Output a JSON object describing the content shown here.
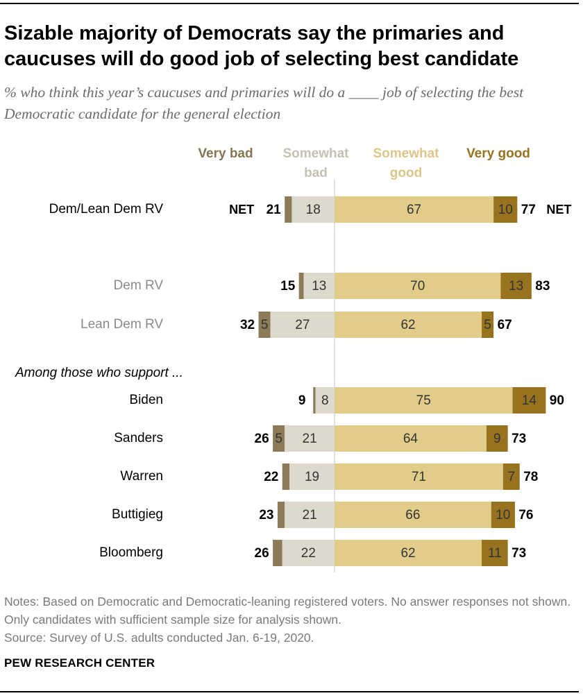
{
  "title": "Sizable majority of Democrats say the primaries and caucuses will do good job of selecting best candidate",
  "subtitle": "% who think this year’s caucuses and primaries will do a ____ job of selecting the best Democratic candidate for the general election",
  "notes": "Notes: Based on Democratic and Democratic-leaning registered voters. No answer responses not shown. Only candidates with sufficient sample size for analysis shown.",
  "source": "Source: Survey of U.S. adults conducted Jan. 6-19, 2020.",
  "organization": "PEW RESEARCH CENTER",
  "chart_data": {
    "type": "bar",
    "orientation": "horizontal-diverging",
    "net_label": "NET",
    "section_label": "Among those who support ...",
    "legend": [
      "Very bad",
      "Somewhat bad",
      "Somewhat good",
      "Very good"
    ],
    "colors": {
      "very_bad": "#8c7b58",
      "somewhat_bad": "#ddd9cd",
      "somewhat_good": "#e2cc8a",
      "very_good": "#98731f",
      "label_very_bad": "#857553",
      "label_somewhat_bad": "#c4c0b3",
      "label_somewhat_good": "#ddc68a",
      "label_very_good": "#98731f",
      "grey_category": "#8a8a8a",
      "axis": "#cccccc"
    },
    "categories": [
      "Dem/Lean Dem RV",
      "Dem RV",
      "Lean Dem RV",
      "Biden",
      "Sanders",
      "Warren",
      "Buttigieg",
      "Bloomberg"
    ],
    "category_style": [
      "normal",
      "grey",
      "grey",
      "normal",
      "normal",
      "normal",
      "normal",
      "normal"
    ],
    "show_net_word": [
      true,
      false,
      false,
      false,
      false,
      false,
      false,
      false
    ],
    "series": [
      {
        "name": "Very bad",
        "values": [
          3,
          2,
          5,
          1,
          5,
          3,
          3,
          4
        ],
        "labels": [
          "",
          "",
          "5",
          "",
          "5",
          "",
          "",
          ""
        ]
      },
      {
        "name": "Somewhat bad",
        "values": [
          18,
          13,
          27,
          8,
          21,
          19,
          21,
          22
        ],
        "labels": [
          "18",
          "13",
          "27",
          "8",
          "21",
          "19",
          "21",
          "22"
        ]
      },
      {
        "name": "Somewhat good",
        "values": [
          67,
          70,
          62,
          75,
          64,
          71,
          66,
          62
        ],
        "labels": [
          "67",
          "70",
          "62",
          "75",
          "64",
          "71",
          "66",
          "62"
        ]
      },
      {
        "name": "Very good",
        "values": [
          10,
          13,
          5,
          14,
          9,
          7,
          10,
          11
        ],
        "labels": [
          "10",
          "13",
          "5",
          "14",
          "9",
          "7",
          "10",
          "11"
        ]
      }
    ],
    "net_bad": [
      "21",
      "15",
      "32",
      "9",
      "26",
      "22",
      "23",
      "26"
    ],
    "net_good": [
      "77",
      "83",
      "67",
      "90",
      "73",
      "78",
      "76",
      "73"
    ]
  }
}
